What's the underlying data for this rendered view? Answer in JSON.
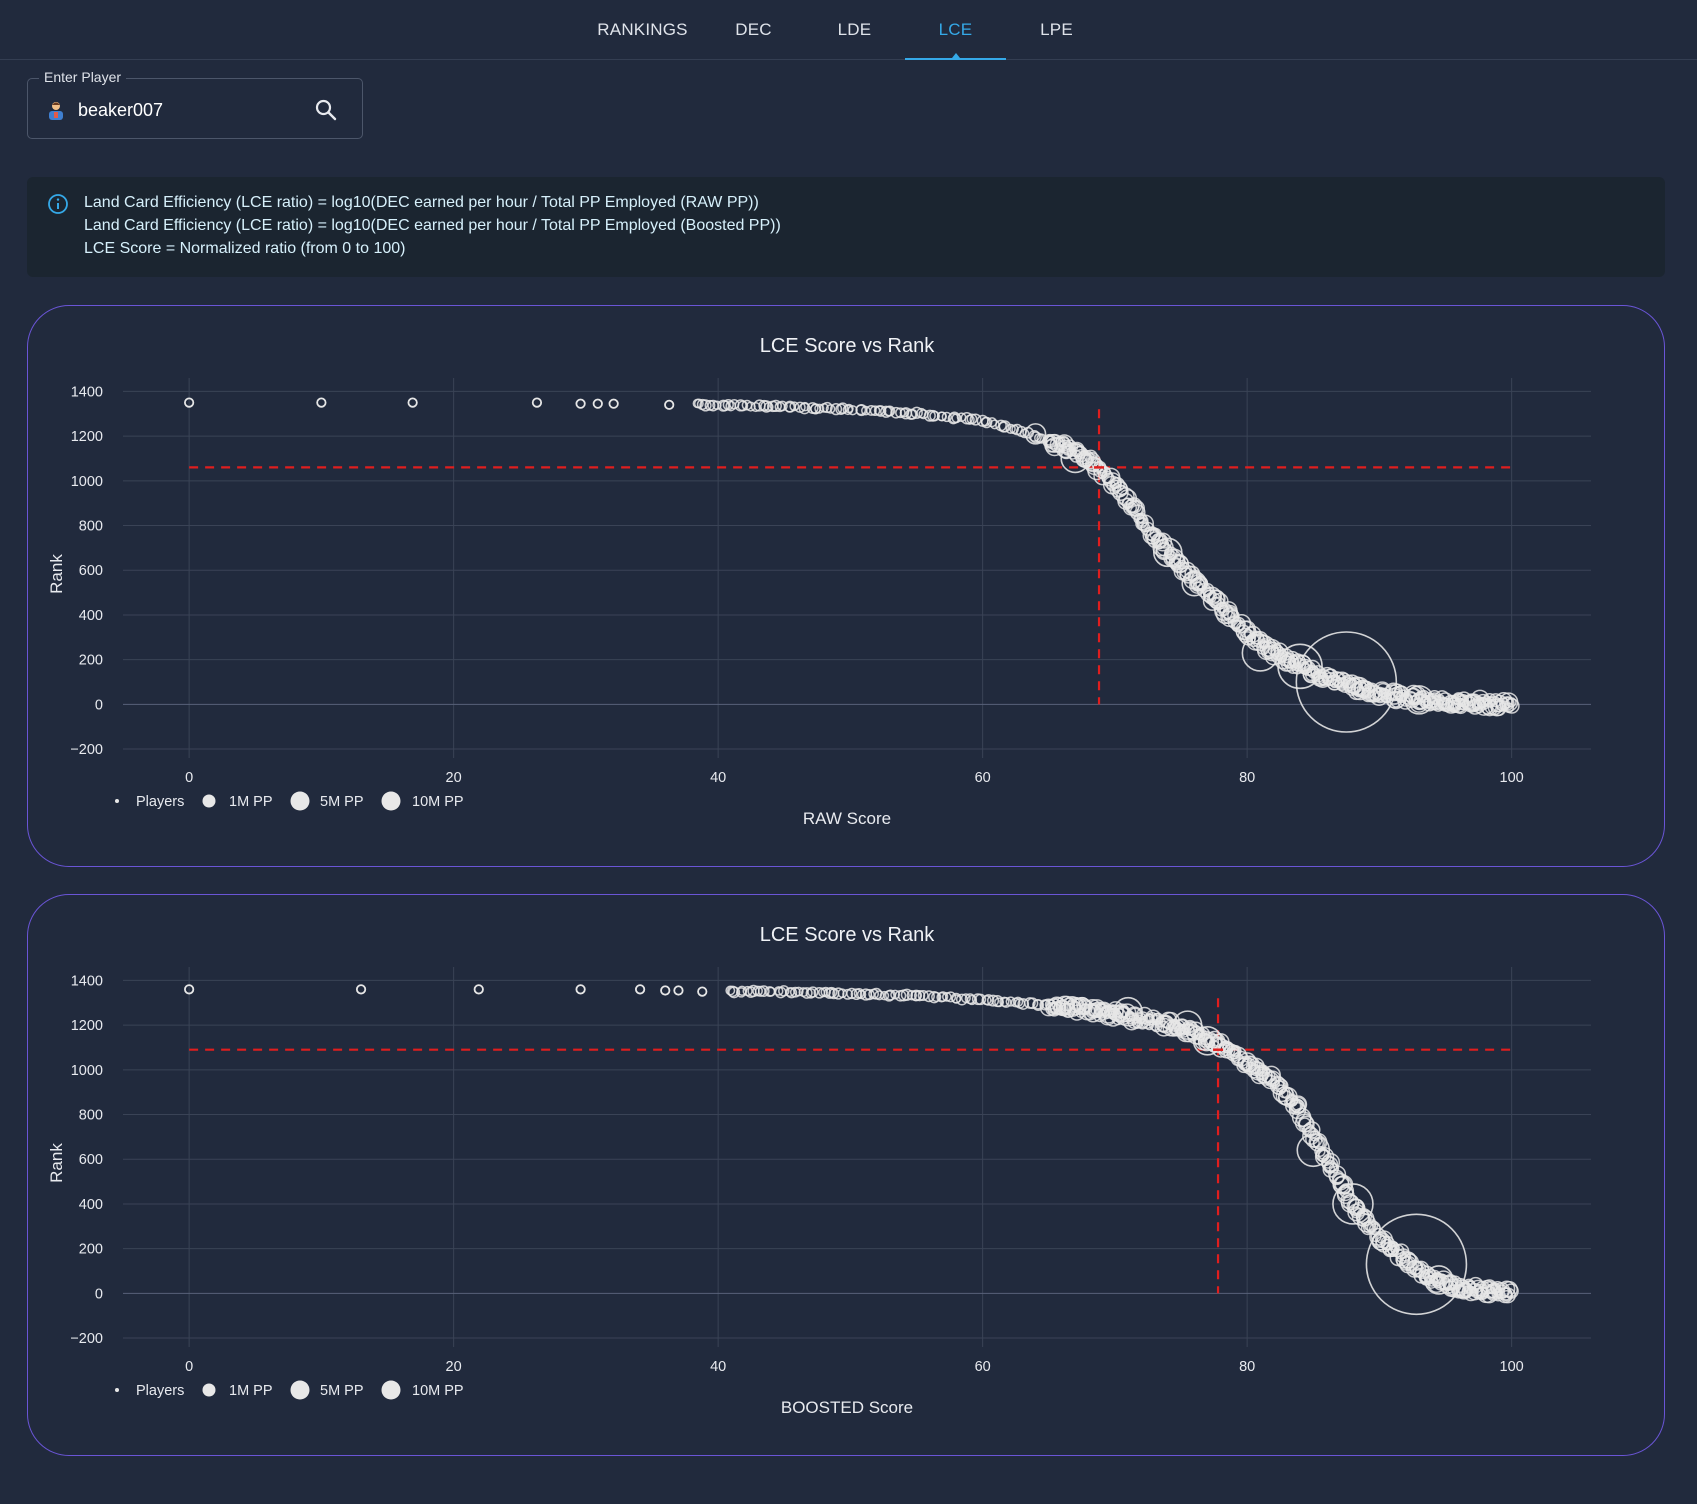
{
  "tabs": [
    {
      "label": "RANKINGS",
      "active": false
    },
    {
      "label": "DEC",
      "active": false
    },
    {
      "label": "LDE",
      "active": false
    },
    {
      "label": "LCE",
      "active": true
    },
    {
      "label": "LPE",
      "active": false
    }
  ],
  "player_search": {
    "label": "Enter Player",
    "value": "beaker007",
    "search_icon": "search-icon",
    "avatar_icon": "player-avatar-icon"
  },
  "info": {
    "icon": "info-icon",
    "lines": [
      "Land Card Efficiency (LCE ratio) = log10(DEC earned per hour / Total PP Employed (RAW PP))",
      "Land Card Efficiency (LCE ratio) = log10(DEC earned per hour / Total PP Employed (Boosted PP))",
      "LCE Score = Normalized ratio (from 0 to 100)"
    ]
  },
  "colors": {
    "background": "#212a3d",
    "accent": "#35a9e8",
    "card_border": "#6a55d6",
    "marker": "#e6e6e6",
    "crosshair": "#e01e1e"
  },
  "legend": [
    "Players",
    "1M PP",
    "5M PP",
    "10M PP"
  ],
  "chart_data": [
    {
      "type": "scatter",
      "title": "LCE Score vs Rank",
      "xlabel": "RAW Score",
      "ylabel": "Rank",
      "xlim": [
        -5,
        106
      ],
      "ylim": [
        -240,
        1460
      ],
      "xticks": [
        0,
        20,
        40,
        60,
        80,
        100
      ],
      "yticks": [
        -200,
        0,
        200,
        400,
        600,
        800,
        1000,
        1200,
        1400
      ],
      "grid": true,
      "legend_position": "bottom-left",
      "legend": [
        "Players",
        "1M PP",
        "5M PP",
        "10M PP"
      ],
      "highlight": {
        "x": 68.8,
        "y": 1060
      },
      "curve": [
        [
          0,
          1350
        ],
        [
          10,
          1350
        ],
        [
          17,
          1350
        ],
        [
          26,
          1350
        ],
        [
          30,
          1350
        ],
        [
          36,
          1345
        ],
        [
          40,
          1340
        ],
        [
          50,
          1320
        ],
        [
          55,
          1300
        ],
        [
          60,
          1270
        ],
        [
          63,
          1220
        ],
        [
          66,
          1160
        ],
        [
          68,
          1100
        ],
        [
          69,
          1040
        ],
        [
          70,
          980
        ],
        [
          72,
          830
        ],
        [
          74,
          680
        ],
        [
          76,
          560
        ],
        [
          78,
          440
        ],
        [
          80,
          320
        ],
        [
          82,
          230
        ],
        [
          84,
          170
        ],
        [
          86,
          120
        ],
        [
          88,
          80
        ],
        [
          90,
          50
        ],
        [
          92,
          30
        ],
        [
          95,
          10
        ],
        [
          100,
          0
        ]
      ],
      "large_points": [
        [
          87.5,
          100,
          50
        ],
        [
          81,
          230,
          18
        ],
        [
          84,
          170,
          22
        ],
        [
          74,
          680,
          14
        ],
        [
          76,
          540,
          12
        ],
        [
          67,
          1100,
          14
        ],
        [
          64,
          1210,
          10
        ],
        [
          93,
          20,
          14
        ],
        [
          96,
          5,
          9
        ]
      ],
      "sparse_points": [
        [
          0,
          1350
        ],
        [
          10,
          1350
        ],
        [
          16.9,
          1350
        ],
        [
          26.3,
          1350
        ],
        [
          29.6,
          1345
        ],
        [
          30.9,
          1345
        ],
        [
          32.1,
          1345
        ],
        [
          36.3,
          1340
        ]
      ]
    },
    {
      "type": "scatter",
      "title": "LCE Score vs Rank",
      "xlabel": "BOOSTED Score",
      "ylabel": "Rank",
      "xlim": [
        -5,
        106
      ],
      "ylim": [
        -240,
        1460
      ],
      "xticks": [
        0,
        20,
        40,
        60,
        80,
        100
      ],
      "yticks": [
        -200,
        0,
        200,
        400,
        600,
        800,
        1000,
        1200,
        1400
      ],
      "grid": true,
      "legend_position": "bottom-left",
      "legend": [
        "Players",
        "1M PP",
        "5M PP",
        "10M PP"
      ],
      "highlight": {
        "x": 77.8,
        "y": 1090
      },
      "curve": [
        [
          0,
          1360
        ],
        [
          13,
          1360
        ],
        [
          22,
          1360
        ],
        [
          29.6,
          1360
        ],
        [
          34,
          1360
        ],
        [
          38.5,
          1350
        ],
        [
          44,
          1350
        ],
        [
          50,
          1340
        ],
        [
          56,
          1330
        ],
        [
          60,
          1310
        ],
        [
          65,
          1290
        ],
        [
          70,
          1250
        ],
        [
          75,
          1190
        ],
        [
          78,
          1110
        ],
        [
          80,
          1030
        ],
        [
          82,
          950
        ],
        [
          84,
          820
        ],
        [
          85,
          700
        ],
        [
          86,
          600
        ],
        [
          87,
          500
        ],
        [
          88,
          400
        ],
        [
          89,
          320
        ],
        [
          90,
          250
        ],
        [
          91,
          200
        ],
        [
          92,
          150
        ],
        [
          93,
          100
        ],
        [
          94,
          60
        ],
        [
          96,
          25
        ],
        [
          100,
          0
        ]
      ],
      "large_points": [
        [
          92.8,
          130,
          50
        ],
        [
          88,
          400,
          20
        ],
        [
          85,
          640,
          16
        ],
        [
          71,
          1260,
          14
        ],
        [
          75.5,
          1200,
          14
        ],
        [
          77,
          1130,
          14
        ],
        [
          94.5,
          60,
          14
        ]
      ],
      "sparse_points": [
        [
          0,
          1360
        ],
        [
          13,
          1360
        ],
        [
          21.9,
          1360
        ],
        [
          29.6,
          1360
        ],
        [
          34.1,
          1360
        ],
        [
          36,
          1355
        ],
        [
          37,
          1355
        ],
        [
          38.8,
          1350
        ]
      ]
    }
  ]
}
